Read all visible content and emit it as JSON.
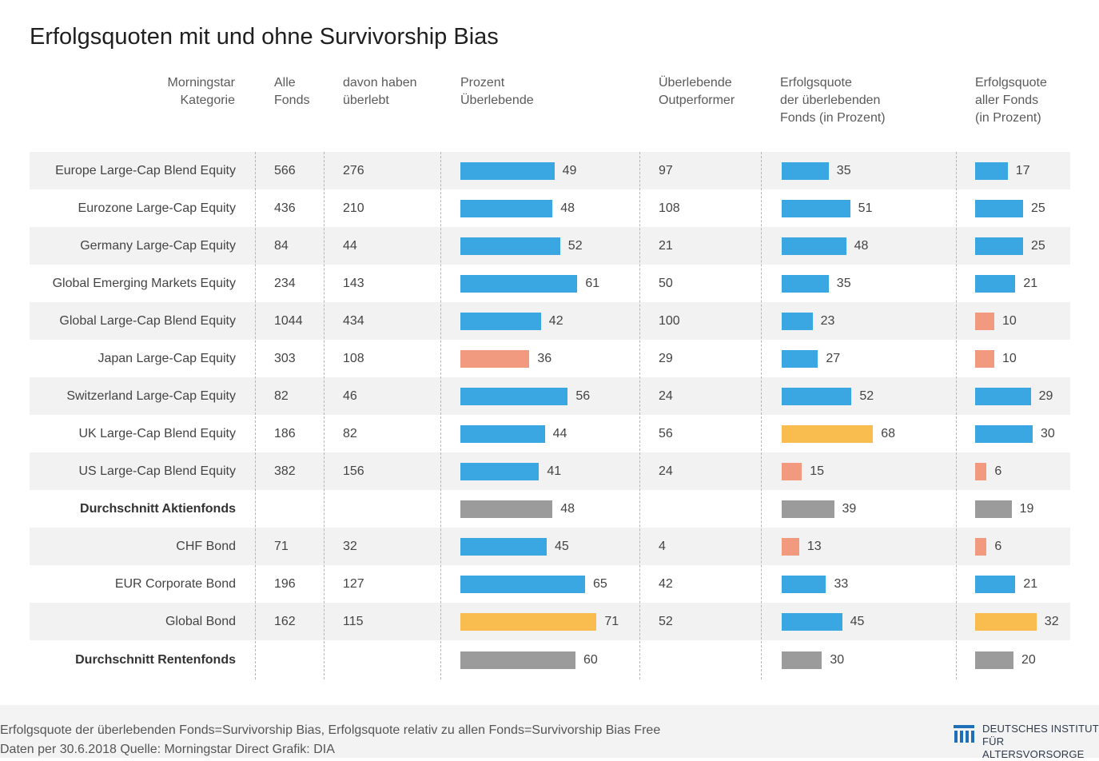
{
  "title": "Erfolgsquoten mit und ohne Survivorship Bias",
  "headers": {
    "category": "Morningstar\nKategorie",
    "all_funds": "Alle\nFonds",
    "survived": "davon haben\nüberlebt",
    "pct_survivors": "Prozent\nÜberlebende",
    "outperformers": "Überlebende\nOutperformer",
    "success_survivors": "Erfolgsquote\nder überlebenden\nFonds (in Prozent)",
    "success_all": "Erfolgsquote\naller Fonds\n(in Prozent)"
  },
  "colors": {
    "blue": "#3aa7e2",
    "salmon": "#f29a80",
    "yellow": "#f9bd4f",
    "gray": "#9b9b9b"
  },
  "chart_data": {
    "type": "table",
    "columns": [
      "Morningstar Kategorie",
      "Alle Fonds",
      "davon haben überlebt",
      "Prozent Überlebende",
      "Überlebende Outperformer",
      "Erfolgsquote der überlebenden Fonds (in Prozent)",
      "Erfolgsquote aller Fonds (in Prozent)"
    ],
    "rows": [
      {
        "category": "Europe Large-Cap Blend Equity",
        "all": "566",
        "survived": "276",
        "pct": 49,
        "pct_color": "blue",
        "outperf": "97",
        "succ_surv": 35,
        "succ_surv_color": "blue",
        "succ_all": 17,
        "succ_all_color": "blue",
        "avg": false
      },
      {
        "category": "Eurozone Large-Cap Equity",
        "all": "436",
        "survived": "210",
        "pct": 48,
        "pct_color": "blue",
        "outperf": "108",
        "succ_surv": 51,
        "succ_surv_color": "blue",
        "succ_all": 25,
        "succ_all_color": "blue",
        "avg": false
      },
      {
        "category": "Germany Large-Cap Equity",
        "all": "84",
        "survived": "44",
        "pct": 52,
        "pct_color": "blue",
        "outperf": "21",
        "succ_surv": 48,
        "succ_surv_color": "blue",
        "succ_all": 25,
        "succ_all_color": "blue",
        "avg": false
      },
      {
        "category": "Global Emerging Markets Equity",
        "all": "234",
        "survived": "143",
        "pct": 61,
        "pct_color": "blue",
        "outperf": "50",
        "succ_surv": 35,
        "succ_surv_color": "blue",
        "succ_all": 21,
        "succ_all_color": "blue",
        "avg": false
      },
      {
        "category": "Global Large-Cap Blend Equity",
        "all": "1044",
        "survived": "434",
        "pct": 42,
        "pct_color": "blue",
        "outperf": "100",
        "succ_surv": 23,
        "succ_surv_color": "blue",
        "succ_all": 10,
        "succ_all_color": "salmon",
        "avg": false
      },
      {
        "category": "Japan Large-Cap Equity",
        "all": "303",
        "survived": "108",
        "pct": 36,
        "pct_color": "salmon",
        "outperf": "29",
        "succ_surv": 27,
        "succ_surv_color": "blue",
        "succ_all": 10,
        "succ_all_color": "salmon",
        "avg": false
      },
      {
        "category": "Switzerland Large-Cap Equity",
        "all": "82",
        "survived": "46",
        "pct": 56,
        "pct_color": "blue",
        "outperf": "24",
        "succ_surv": 52,
        "succ_surv_color": "blue",
        "succ_all": 29,
        "succ_all_color": "blue",
        "avg": false
      },
      {
        "category": "UK Large-Cap Blend Equity",
        "all": "186",
        "survived": "82",
        "pct": 44,
        "pct_color": "blue",
        "outperf": "56",
        "succ_surv": 68,
        "succ_surv_color": "yellow",
        "succ_all": 30,
        "succ_all_color": "blue",
        "avg": false
      },
      {
        "category": "US Large-Cap Blend Equity",
        "all": "382",
        "survived": "156",
        "pct": 41,
        "pct_color": "blue",
        "outperf": "24",
        "succ_surv": 15,
        "succ_surv_color": "salmon",
        "succ_all": 6,
        "succ_all_color": "salmon",
        "avg": false
      },
      {
        "category": "Durchschnitt Aktienfonds",
        "all": "",
        "survived": "",
        "pct": 48,
        "pct_color": "gray",
        "outperf": "",
        "succ_surv": 39,
        "succ_surv_color": "gray",
        "succ_all": 19,
        "succ_all_color": "gray",
        "avg": true
      },
      {
        "category": "CHF Bond",
        "all": "71",
        "survived": "32",
        "pct": 45,
        "pct_color": "blue",
        "outperf": "4",
        "succ_surv": 13,
        "succ_surv_color": "salmon",
        "succ_all": 6,
        "succ_all_color": "salmon",
        "avg": false
      },
      {
        "category": "EUR Corporate Bond",
        "all": "196",
        "survived": "127",
        "pct": 65,
        "pct_color": "blue",
        "outperf": "42",
        "succ_surv": 33,
        "succ_surv_color": "blue",
        "succ_all": 21,
        "succ_all_color": "blue",
        "avg": false
      },
      {
        "category": "Global Bond",
        "all": "162",
        "survived": "115",
        "pct": 71,
        "pct_color": "yellow",
        "outperf": "52",
        "succ_surv": 45,
        "succ_surv_color": "blue",
        "succ_all": 32,
        "succ_all_color": "yellow",
        "avg": false
      },
      {
        "category": "Durchschnitt Rentenfonds",
        "all": "",
        "survived": "",
        "pct": 60,
        "pct_color": "gray",
        "outperf": "",
        "succ_surv": 30,
        "succ_surv_color": "gray",
        "succ_all": 20,
        "succ_all_color": "gray",
        "avg": true
      }
    ]
  },
  "footer": {
    "note": "Erfolgsquote der überlebenden Fonds=Survivorship Bias, Erfolgsquote relativ zu allen Fonds=Survivorship Bias Free",
    "source": "Daten per 30.6.2018  Quelle: Morningstar Direct  Grafik: DIA"
  },
  "logo": {
    "text": "DEUTSCHES INSTITUT\nFÜR ALTERSVORSORGE"
  }
}
